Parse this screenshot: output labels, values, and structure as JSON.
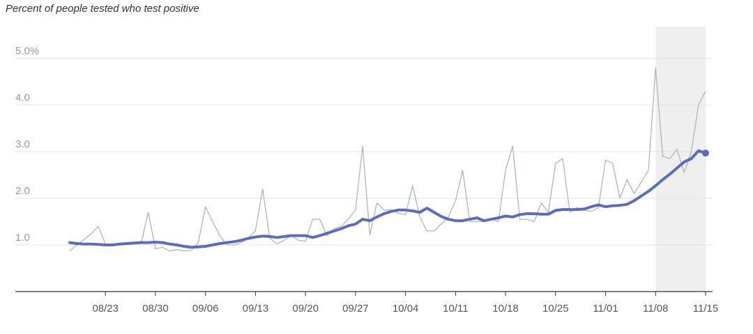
{
  "chart_data": {
    "type": "line",
    "title": "Percent of people tested who test positive",
    "xlabel": "",
    "ylabel": "",
    "ylim": [
      0,
      5.6
    ],
    "y_ticks": [
      {
        "value": 1.0,
        "label": "1.0"
      },
      {
        "value": 2.0,
        "label": "2.0"
      },
      {
        "value": 3.0,
        "label": "3.0"
      },
      {
        "value": 4.0,
        "label": "4.0"
      },
      {
        "value": 5.0,
        "label": "5.0%"
      }
    ],
    "x_ticks": [
      "08/23",
      "08/30",
      "09/06",
      "09/13",
      "09/20",
      "09/27",
      "10/04",
      "10/11",
      "10/18",
      "10/25",
      "11/01",
      "11/08",
      "11/15"
    ],
    "x_start": "08/18",
    "x_end": "11/15",
    "highlight_range": [
      "11/08",
      "11/15"
    ],
    "grid": true,
    "legend": "none",
    "colors": {
      "average": "#5b6bbf",
      "daily": "#a9bab6",
      "highlight": "#efefef",
      "gridline": "#e3e3e3",
      "axis": "#333333",
      "tick_label": "#555555",
      "y_label": "#999999"
    },
    "series": [
      {
        "key": "daily",
        "values": [
          {
            "x": "08/18",
            "y": 0.87
          },
          {
            "x": "08/19",
            "y": 1.0
          },
          {
            "x": "08/20",
            "y": 1.12
          },
          {
            "x": "08/21",
            "y": 1.24
          },
          {
            "x": "08/22",
            "y": 1.4
          },
          {
            "x": "08/23",
            "y": 1.02
          },
          {
            "x": "08/24",
            "y": 1.0
          },
          {
            "x": "08/25",
            "y": 1.0
          },
          {
            "x": "08/26",
            "y": 1.03
          },
          {
            "x": "08/27",
            "y": 1.04
          },
          {
            "x": "08/28",
            "y": 1.04
          },
          {
            "x": "08/29",
            "y": 1.7
          },
          {
            "x": "08/30",
            "y": 0.92
          },
          {
            "x": "08/31",
            "y": 0.95
          },
          {
            "x": "09/01",
            "y": 0.87
          },
          {
            "x": "09/02",
            "y": 0.9
          },
          {
            "x": "09/03",
            "y": 0.87
          },
          {
            "x": "09/04",
            "y": 0.88
          },
          {
            "x": "09/05",
            "y": 1.05
          },
          {
            "x": "09/06",
            "y": 1.82
          },
          {
            "x": "09/07",
            "y": 1.5
          },
          {
            "x": "09/08",
            "y": 1.2
          },
          {
            "x": "09/09",
            "y": 1.0
          },
          {
            "x": "09/10",
            "y": 1.0
          },
          {
            "x": "09/11",
            "y": 1.05
          },
          {
            "x": "09/12",
            "y": 1.15
          },
          {
            "x": "09/13",
            "y": 1.3
          },
          {
            "x": "09/14",
            "y": 2.2
          },
          {
            "x": "09/15",
            "y": 1.15
          },
          {
            "x": "09/16",
            "y": 1.02
          },
          {
            "x": "09/17",
            "y": 1.1
          },
          {
            "x": "09/18",
            "y": 1.2
          },
          {
            "x": "09/19",
            "y": 1.1
          },
          {
            "x": "09/20",
            "y": 1.08
          },
          {
            "x": "09/21",
            "y": 1.55
          },
          {
            "x": "09/22",
            "y": 1.55
          },
          {
            "x": "09/23",
            "y": 1.2
          },
          {
            "x": "09/24",
            "y": 1.35
          },
          {
            "x": "09/25",
            "y": 1.4
          },
          {
            "x": "09/26",
            "y": 1.55
          },
          {
            "x": "09/27",
            "y": 1.75
          },
          {
            "x": "09/28",
            "y": 3.12
          },
          {
            "x": "09/29",
            "y": 1.22
          },
          {
            "x": "09/30",
            "y": 1.9
          },
          {
            "x": "10/01",
            "y": 1.75
          },
          {
            "x": "10/02",
            "y": 1.75
          },
          {
            "x": "10/03",
            "y": 1.68
          },
          {
            "x": "10/04",
            "y": 1.65
          },
          {
            "x": "10/05",
            "y": 2.27
          },
          {
            "x": "10/06",
            "y": 1.6
          },
          {
            "x": "10/07",
            "y": 1.3
          },
          {
            "x": "10/08",
            "y": 1.3
          },
          {
            "x": "10/09",
            "y": 1.45
          },
          {
            "x": "10/10",
            "y": 1.6
          },
          {
            "x": "10/11",
            "y": 1.95
          },
          {
            "x": "10/12",
            "y": 2.6
          },
          {
            "x": "10/13",
            "y": 1.5
          },
          {
            "x": "10/14",
            "y": 1.5
          },
          {
            "x": "10/15",
            "y": 1.5
          },
          {
            "x": "10/16",
            "y": 1.55
          },
          {
            "x": "10/17",
            "y": 1.5
          },
          {
            "x": "10/18",
            "y": 2.6
          },
          {
            "x": "10/19",
            "y": 3.12
          },
          {
            "x": "10/20",
            "y": 1.55
          },
          {
            "x": "10/21",
            "y": 1.55
          },
          {
            "x": "10/22",
            "y": 1.5
          },
          {
            "x": "10/23",
            "y": 1.9
          },
          {
            "x": "10/24",
            "y": 1.7
          },
          {
            "x": "10/25",
            "y": 2.75
          },
          {
            "x": "10/26",
            "y": 2.85
          },
          {
            "x": "10/27",
            "y": 1.7
          },
          {
            "x": "10/28",
            "y": 1.8
          },
          {
            "x": "10/29",
            "y": 1.75
          },
          {
            "x": "10/30",
            "y": 1.72
          },
          {
            "x": "10/31",
            "y": 1.8
          },
          {
            "x": "11/01",
            "y": 2.82
          },
          {
            "x": "11/02",
            "y": 2.75
          },
          {
            "x": "11/03",
            "y": 2.0
          },
          {
            "x": "11/04",
            "y": 2.4
          },
          {
            "x": "11/05",
            "y": 2.1
          },
          {
            "x": "11/06",
            "y": 2.35
          },
          {
            "x": "11/07",
            "y": 2.6
          },
          {
            "x": "11/08",
            "y": 4.8
          },
          {
            "x": "11/09",
            "y": 2.9
          },
          {
            "x": "11/10",
            "y": 2.85
          },
          {
            "x": "11/11",
            "y": 3.05
          },
          {
            "x": "11/12",
            "y": 2.55
          },
          {
            "x": "11/13",
            "y": 3.0
          },
          {
            "x": "11/14",
            "y": 4.0
          },
          {
            "x": "11/15",
            "y": 4.3
          }
        ]
      },
      {
        "key": "average",
        "values": [
          {
            "x": "08/18",
            "y": 1.05
          },
          {
            "x": "08/19",
            "y": 1.03
          },
          {
            "x": "08/20",
            "y": 1.02
          },
          {
            "x": "08/21",
            "y": 1.02
          },
          {
            "x": "08/22",
            "y": 1.01
          },
          {
            "x": "08/23",
            "y": 1.0
          },
          {
            "x": "08/24",
            "y": 1.0
          },
          {
            "x": "08/25",
            "y": 1.02
          },
          {
            "x": "08/26",
            "y": 1.03
          },
          {
            "x": "08/27",
            "y": 1.04
          },
          {
            "x": "08/28",
            "y": 1.05
          },
          {
            "x": "08/29",
            "y": 1.05
          },
          {
            "x": "08/30",
            "y": 1.06
          },
          {
            "x": "08/31",
            "y": 1.05
          },
          {
            "x": "09/01",
            "y": 1.02
          },
          {
            "x": "09/02",
            "y": 1.0
          },
          {
            "x": "09/03",
            "y": 0.97
          },
          {
            "x": "09/04",
            "y": 0.95
          },
          {
            "x": "09/05",
            "y": 0.96
          },
          {
            "x": "09/06",
            "y": 0.97
          },
          {
            "x": "09/07",
            "y": 1.0
          },
          {
            "x": "09/08",
            "y": 1.03
          },
          {
            "x": "09/09",
            "y": 1.05
          },
          {
            "x": "09/10",
            "y": 1.07
          },
          {
            "x": "09/11",
            "y": 1.1
          },
          {
            "x": "09/12",
            "y": 1.14
          },
          {
            "x": "09/13",
            "y": 1.17
          },
          {
            "x": "09/14",
            "y": 1.19
          },
          {
            "x": "09/15",
            "y": 1.18
          },
          {
            "x": "09/16",
            "y": 1.16
          },
          {
            "x": "09/17",
            "y": 1.18
          },
          {
            "x": "09/18",
            "y": 1.2
          },
          {
            "x": "09/19",
            "y": 1.2
          },
          {
            "x": "09/20",
            "y": 1.2
          },
          {
            "x": "09/21",
            "y": 1.16
          },
          {
            "x": "09/22",
            "y": 1.2
          },
          {
            "x": "09/23",
            "y": 1.25
          },
          {
            "x": "09/24",
            "y": 1.3
          },
          {
            "x": "09/25",
            "y": 1.35
          },
          {
            "x": "09/26",
            "y": 1.41
          },
          {
            "x": "09/27",
            "y": 1.45
          },
          {
            "x": "09/28",
            "y": 1.55
          },
          {
            "x": "09/29",
            "y": 1.52
          },
          {
            "x": "09/30",
            "y": 1.6
          },
          {
            "x": "10/01",
            "y": 1.67
          },
          {
            "x": "10/02",
            "y": 1.72
          },
          {
            "x": "10/03",
            "y": 1.75
          },
          {
            "x": "10/04",
            "y": 1.75
          },
          {
            "x": "10/05",
            "y": 1.73
          },
          {
            "x": "10/06",
            "y": 1.7
          },
          {
            "x": "10/07",
            "y": 1.79
          },
          {
            "x": "10/08",
            "y": 1.7
          },
          {
            "x": "10/09",
            "y": 1.61
          },
          {
            "x": "10/10",
            "y": 1.55
          },
          {
            "x": "10/11",
            "y": 1.52
          },
          {
            "x": "10/12",
            "y": 1.52
          },
          {
            "x": "10/13",
            "y": 1.55
          },
          {
            "x": "10/14",
            "y": 1.58
          },
          {
            "x": "10/15",
            "y": 1.52
          },
          {
            "x": "10/16",
            "y": 1.55
          },
          {
            "x": "10/17",
            "y": 1.58
          },
          {
            "x": "10/18",
            "y": 1.62
          },
          {
            "x": "10/19",
            "y": 1.6
          },
          {
            "x": "10/20",
            "y": 1.65
          },
          {
            "x": "10/21",
            "y": 1.67
          },
          {
            "x": "10/22",
            "y": 1.67
          },
          {
            "x": "10/23",
            "y": 1.66
          },
          {
            "x": "10/24",
            "y": 1.66
          },
          {
            "x": "10/25",
            "y": 1.74
          },
          {
            "x": "10/26",
            "y": 1.76
          },
          {
            "x": "10/27",
            "y": 1.76
          },
          {
            "x": "10/28",
            "y": 1.76
          },
          {
            "x": "10/29",
            "y": 1.77
          },
          {
            "x": "10/30",
            "y": 1.82
          },
          {
            "x": "10/31",
            "y": 1.86
          },
          {
            "x": "11/01",
            "y": 1.82
          },
          {
            "x": "11/02",
            "y": 1.84
          },
          {
            "x": "11/03",
            "y": 1.85
          },
          {
            "x": "11/04",
            "y": 1.87
          },
          {
            "x": "11/05",
            "y": 1.95
          },
          {
            "x": "11/06",
            "y": 2.05
          },
          {
            "x": "11/07",
            "y": 2.15
          },
          {
            "x": "11/08",
            "y": 2.27
          },
          {
            "x": "11/09",
            "y": 2.4
          },
          {
            "x": "11/10",
            "y": 2.52
          },
          {
            "x": "11/11",
            "y": 2.65
          },
          {
            "x": "11/12",
            "y": 2.78
          },
          {
            "x": "11/13",
            "y": 2.85
          },
          {
            "x": "11/14",
            "y": 3.02
          },
          {
            "x": "11/15",
            "y": 2.97
          }
        ]
      }
    ]
  }
}
